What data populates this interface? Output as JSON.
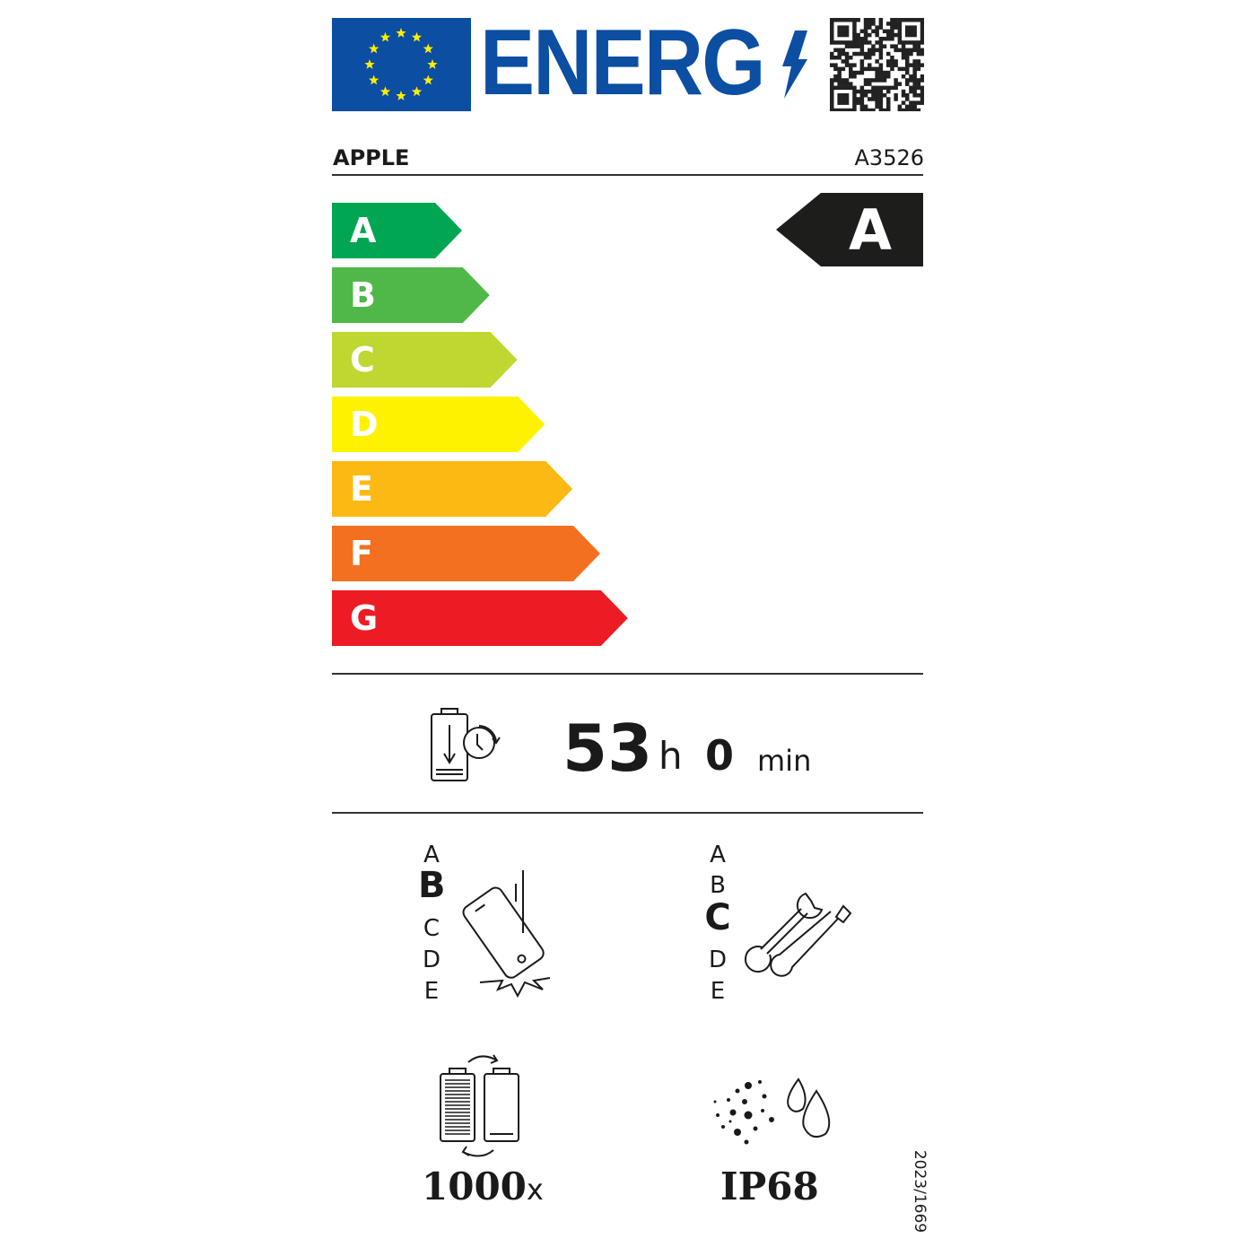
{
  "header": {
    "logo_text": "ENERG",
    "flag_color": "#0b4ea2",
    "star_color": "#ffed00",
    "qr_code": "qr-code"
  },
  "supplier": "APPLE",
  "model": "A3526",
  "energy_scale": [
    {
      "label": "A",
      "color": "#00a651"
    },
    {
      "label": "B",
      "color": "#50b848"
    },
    {
      "label": "C",
      "color": "#bfd730"
    },
    {
      "label": "D",
      "color": "#fff200"
    },
    {
      "label": "E",
      "color": "#fdb913"
    },
    {
      "label": "F",
      "color": "#f37021"
    },
    {
      "label": "G",
      "color": "#ed1c24"
    }
  ],
  "energy_class": "A",
  "battery_endurance": {
    "hours": "53",
    "hours_unit": "h",
    "minutes": "0",
    "minutes_unit": "min"
  },
  "drop_resistance": {
    "classes": [
      "A",
      "B",
      "C",
      "D",
      "E"
    ],
    "selected": "B"
  },
  "repairability": {
    "classes": [
      "A",
      "B",
      "C",
      "D",
      "E"
    ],
    "selected": "C"
  },
  "battery_cycles": {
    "value": "1000",
    "unit": "x"
  },
  "ingress_protection": "IP68",
  "regulation": "2023/1669"
}
